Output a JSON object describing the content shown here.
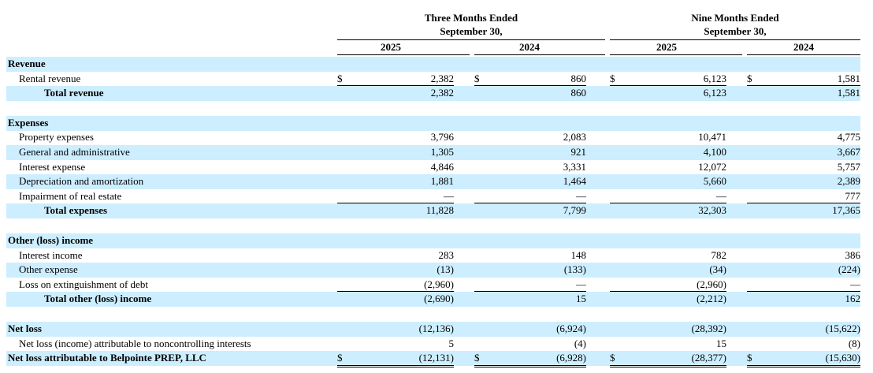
{
  "header": {
    "group1": [
      "Three Months Ended",
      "September 30,"
    ],
    "group2": [
      "Nine Months Ended",
      "September 30,"
    ],
    "years": [
      "2025",
      "2024",
      "2025",
      "2024"
    ]
  },
  "currency_symbol": "$",
  "rows": [
    {
      "key": "revenue_h",
      "type": "section",
      "label": "Revenue",
      "values": [
        "",
        "",
        "",
        ""
      ]
    },
    {
      "key": "rental",
      "type": "sub",
      "label": "Rental revenue",
      "values": [
        "2,382",
        "860",
        "6,123",
        "1,581"
      ],
      "dollar": true
    },
    {
      "key": "total_rev",
      "type": "total",
      "label": "Total revenue",
      "values": [
        "2,382",
        "860",
        "6,123",
        "1,581"
      ]
    },
    {
      "key": "sp1",
      "type": "spacer"
    },
    {
      "key": "expenses_h",
      "type": "section",
      "label": "Expenses",
      "values": [
        "",
        "",
        "",
        ""
      ]
    },
    {
      "key": "prop",
      "type": "sub",
      "label": "Property expenses",
      "values": [
        "3,796",
        "2,083",
        "10,471",
        "4,775"
      ]
    },
    {
      "key": "ga",
      "type": "sub",
      "label": "General and administrative",
      "values": [
        "1,305",
        "921",
        "4,100",
        "3,667"
      ]
    },
    {
      "key": "int",
      "type": "sub",
      "label": "Interest expense",
      "values": [
        "4,846",
        "3,331",
        "12,072",
        "5,757"
      ]
    },
    {
      "key": "dep",
      "type": "sub",
      "label": "Depreciation and amortization",
      "values": [
        "1,881",
        "1,464",
        "5,660",
        "2,389"
      ]
    },
    {
      "key": "imp",
      "type": "sub",
      "label": "Impairment of real estate",
      "values": [
        "—",
        "—",
        "—",
        "777"
      ]
    },
    {
      "key": "total_exp",
      "type": "total",
      "label": "Total expenses",
      "values": [
        "11,828",
        "7,799",
        "32,303",
        "17,365"
      ]
    },
    {
      "key": "sp2",
      "type": "spacer"
    },
    {
      "key": "other_h",
      "type": "section",
      "label": "Other (loss) income",
      "values": [
        "",
        "",
        "",
        ""
      ]
    },
    {
      "key": "int_inc",
      "type": "sub",
      "label": "Interest income",
      "values": [
        "283",
        "148",
        "782",
        "386"
      ]
    },
    {
      "key": "oth_exp",
      "type": "sub",
      "label": "Other expense",
      "values": [
        "(13)",
        "(133)",
        "(34)",
        "(224)"
      ]
    },
    {
      "key": "loss_ext",
      "type": "sub",
      "label": "Loss on extinguishment of debt",
      "values": [
        "(2,960)",
        "—",
        "(2,960)",
        "—"
      ]
    },
    {
      "key": "total_oth",
      "type": "total",
      "label": "Total other (loss) income",
      "values": [
        "(2,690)",
        "15",
        "(2,212)",
        "162"
      ]
    },
    {
      "key": "sp3",
      "type": "spacer"
    },
    {
      "key": "net_loss",
      "type": "section",
      "label": "Net loss",
      "values": [
        "(12,136)",
        "(6,924)",
        "(28,392)",
        "(15,622)"
      ]
    },
    {
      "key": "nci",
      "type": "sub",
      "label": "Net loss (income) attributable to noncontrolling interests",
      "values": [
        "5",
        "(4)",
        "15",
        "(8)"
      ]
    },
    {
      "key": "net_bp",
      "type": "section",
      "label": "Net loss attributable to Belpointe PREP, LLC",
      "values": [
        "(12,131)",
        "(6,928)",
        "(28,377)",
        "(15,630)"
      ],
      "dollar": true
    }
  ]
}
